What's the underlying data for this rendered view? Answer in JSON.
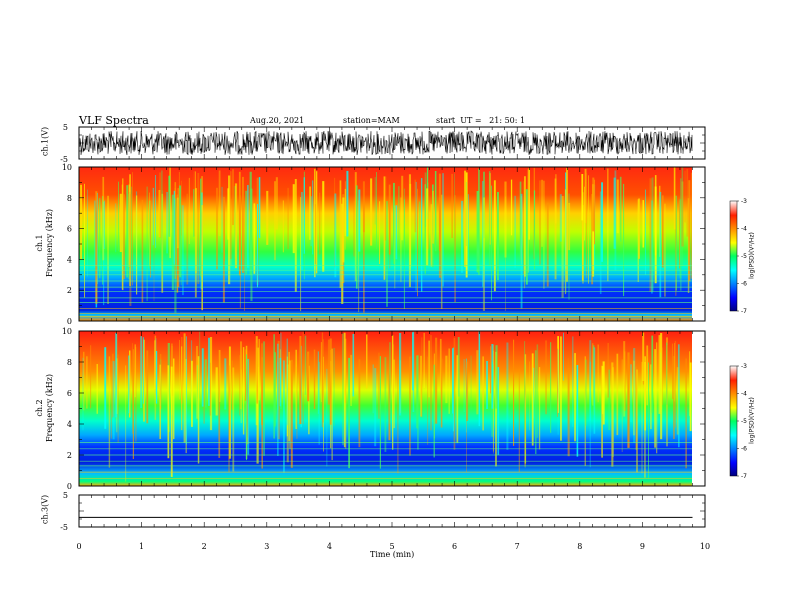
{
  "header": {
    "title": "VLF Spectra",
    "date": "Aug.20, 2021",
    "station": "station=MAM",
    "start": "start  UT =   21: 50: 1"
  },
  "chart_data": [
    {
      "type": "line",
      "panel": "ch1-waveform",
      "ylabel": "ch.1(V)",
      "ylim": [
        -5,
        5
      ],
      "yticks": [
        "5",
        "-5"
      ],
      "xlim": [
        0,
        10
      ],
      "description_series": "dense noise waveform, amplitude roughly -4 to 4 V"
    },
    {
      "type": "heatmap",
      "panel": "ch1-spectrogram",
      "ylabel": "ch.1\nFrequency (kHz)",
      "ylim": [
        0,
        10
      ],
      "yticks": [
        "0",
        "2",
        "4",
        "6",
        "8",
        "10"
      ],
      "xlim": [
        0,
        10
      ],
      "colorbar": {
        "label": "log(PSD)(V²/Hz)",
        "range": [
          -7,
          -3
        ],
        "ticks": [
          "-3",
          "-4",
          "-5",
          "-6",
          "-7"
        ]
      }
    },
    {
      "type": "heatmap",
      "panel": "ch2-spectrogram",
      "ylabel": "ch.2\nFrequency (kHz)",
      "ylim": [
        0,
        10
      ],
      "yticks": [
        "0",
        "2",
        "4",
        "6",
        "8",
        "10"
      ],
      "xlim": [
        0,
        10
      ],
      "colorbar": {
        "label": "log(PSD)(V²/Hz)",
        "range": [
          -7,
          -3
        ],
        "ticks": [
          "-3",
          "-4",
          "-5",
          "-6",
          "-7"
        ]
      }
    },
    {
      "type": "line",
      "panel": "ch3-waveform",
      "ylabel": "ch.3(V)",
      "ylim": [
        -5,
        5
      ],
      "yticks": [
        "5",
        "-5"
      ],
      "x": [
        0,
        9.8
      ],
      "y": [
        -2,
        -2
      ],
      "xlim": [
        0,
        10
      ]
    }
  ],
  "xaxis": {
    "label": "Time (min)",
    "ticks": [
      "0",
      "1",
      "2",
      "3",
      "4",
      "5",
      "6",
      "7",
      "8",
      "9",
      "10"
    ]
  }
}
